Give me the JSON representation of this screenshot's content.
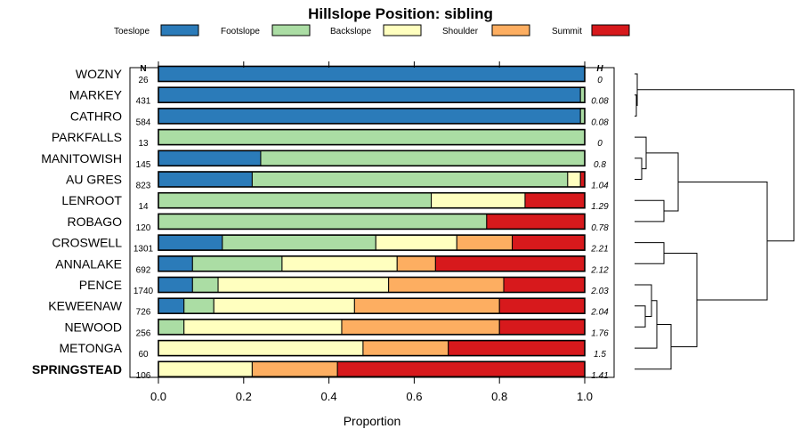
{
  "chart_data": {
    "type": "bar",
    "subtype": "stacked-horizontal-proportion",
    "title": "Hillslope Position: sibling",
    "xlabel": "Proportion",
    "xlim": [
      0,
      1
    ],
    "x_ticks": [
      0,
      0.2,
      0.4,
      0.6,
      0.8,
      1
    ],
    "x_tick_labels": [
      "0.0",
      "0.2",
      "0.4",
      "0.6",
      "0.8",
      "1.0"
    ],
    "n_header": "N",
    "h_header": "H",
    "legend_position": "top",
    "categories": [
      "Toeslope",
      "Footslope",
      "Backslope",
      "Shoulder",
      "Summit"
    ],
    "colors": [
      "#2b7bb9",
      "#abdda4",
      "#ffffbf",
      "#fdae61",
      "#d7191c"
    ],
    "rows": [
      {
        "name": "WOZNY",
        "n": "26",
        "h": "0",
        "bold": false,
        "values": [
          1.0,
          0,
          0,
          0,
          0
        ]
      },
      {
        "name": "MARKEY",
        "n": "431",
        "h": "0.08",
        "bold": false,
        "values": [
          0.99,
          0.01,
          0,
          0,
          0
        ]
      },
      {
        "name": "CATHRO",
        "n": "584",
        "h": "0.08",
        "bold": false,
        "values": [
          0.99,
          0.01,
          0,
          0,
          0
        ]
      },
      {
        "name": "PARKFALLS",
        "n": "13",
        "h": "0",
        "bold": false,
        "values": [
          0,
          1.0,
          0,
          0,
          0
        ]
      },
      {
        "name": "MANITOWISH",
        "n": "145",
        "h": "0.8",
        "bold": false,
        "values": [
          0.24,
          0.76,
          0,
          0,
          0
        ]
      },
      {
        "name": "AU GRES",
        "n": "823",
        "h": "1.04",
        "bold": false,
        "values": [
          0.22,
          0.74,
          0.03,
          0,
          0.01
        ]
      },
      {
        "name": "LENROOT",
        "n": "14",
        "h": "1.29",
        "bold": false,
        "values": [
          0,
          0.64,
          0.22,
          0,
          0.14
        ]
      },
      {
        "name": "ROBAGO",
        "n": "120",
        "h": "0.78",
        "bold": false,
        "values": [
          0,
          0.77,
          0,
          0,
          0.23
        ]
      },
      {
        "name": "CROSWELL",
        "n": "1301",
        "h": "2.21",
        "bold": false,
        "values": [
          0.15,
          0.36,
          0.19,
          0.13,
          0.17
        ]
      },
      {
        "name": "ANNALAKE",
        "n": "692",
        "h": "2.12",
        "bold": false,
        "values": [
          0.08,
          0.21,
          0.27,
          0.09,
          0.35
        ]
      },
      {
        "name": "PENCE",
        "n": "1740",
        "h": "2.03",
        "bold": false,
        "values": [
          0.08,
          0.06,
          0.4,
          0.27,
          0.19
        ]
      },
      {
        "name": "KEWEENAW",
        "n": "726",
        "h": "2.04",
        "bold": false,
        "values": [
          0.06,
          0.07,
          0.33,
          0.34,
          0.2
        ]
      },
      {
        "name": "NEWOOD",
        "n": "256",
        "h": "1.76",
        "bold": false,
        "values": [
          0,
          0.06,
          0.37,
          0.37,
          0.2
        ]
      },
      {
        "name": "METONGA",
        "n": "60",
        "h": "1.5",
        "bold": false,
        "values": [
          0,
          0,
          0.48,
          0.2,
          0.32
        ]
      },
      {
        "name": "SPRINGSTEAD",
        "n": "106",
        "h": "1.41",
        "bold": true,
        "values": [
          0,
          0,
          0.22,
          0.2,
          0.58
        ]
      }
    ]
  }
}
